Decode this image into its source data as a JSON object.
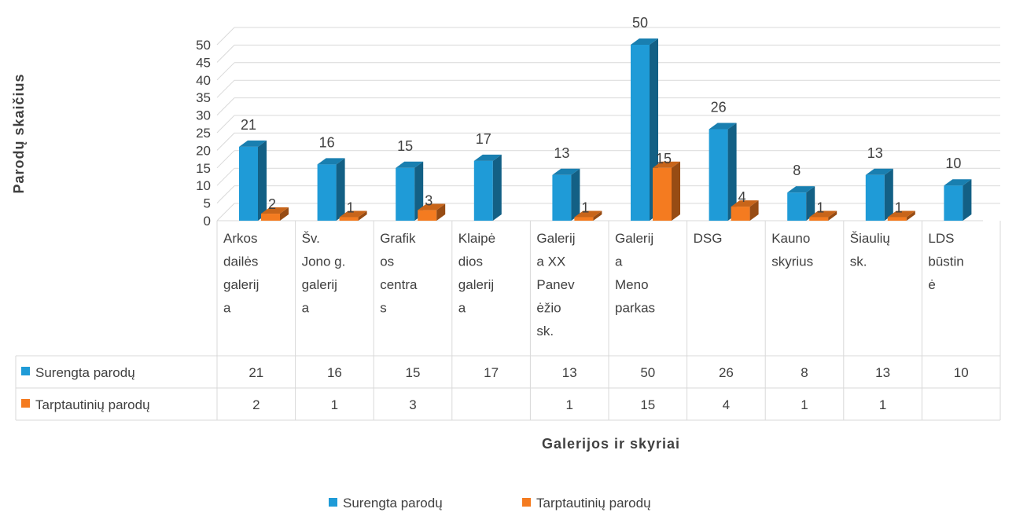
{
  "chart_data": {
    "type": "bar",
    "style": "3d-clustered-column-with-data-table",
    "ylabel": "Parodų skaičius",
    "xlabel": "Galerijos ir skyriai",
    "ylim": [
      0,
      50
    ],
    "yticks": [
      0,
      5,
      10,
      15,
      20,
      25,
      30,
      35,
      40,
      45,
      50
    ],
    "categories": [
      [
        "Arkos",
        "dailės",
        "galerij",
        "a"
      ],
      [
        "Šv.",
        "Jono g.",
        "galerij",
        "a"
      ],
      [
        "Grafik",
        "os",
        "centra",
        "s"
      ],
      [
        "Klaipė",
        "dios",
        "galerij",
        "a"
      ],
      [
        "Galerij",
        "a XX",
        "Panev",
        "ėžio",
        "sk."
      ],
      [
        "Galerij",
        "a",
        "Meno",
        "parkas"
      ],
      [
        "DSG"
      ],
      [
        "Kauno",
        "skyrius"
      ],
      [
        "Šiaulių",
        "sk."
      ],
      [
        "LDS",
        "būstin",
        "ė"
      ]
    ],
    "series": [
      {
        "name": "Surengta parodų",
        "color": "#1f9bd7",
        "values": [
          21,
          16,
          15,
          17,
          13,
          50,
          26,
          8,
          13,
          10
        ]
      },
      {
        "name": "Tarptautinių parodų",
        "color": "#f47b20",
        "values": [
          2,
          1,
          3,
          null,
          1,
          15,
          4,
          1,
          1,
          null
        ]
      }
    ],
    "legend": "bottom",
    "grid": true,
    "data_table": true
  }
}
